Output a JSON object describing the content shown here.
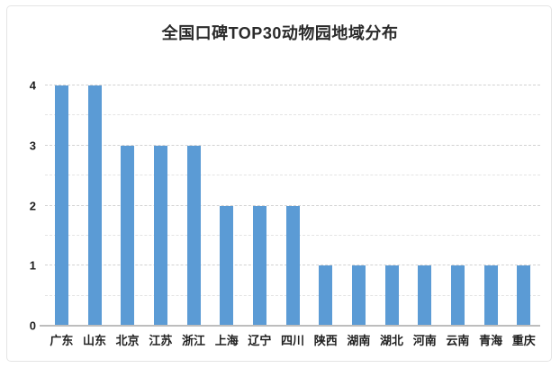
{
  "frame": {
    "background": "#ffffff",
    "border_color": "#e4e4e4"
  },
  "chart_data": {
    "type": "bar",
    "title": "全国口碑TOP30动物园地域分布",
    "categories": [
      "广东",
      "山东",
      "北京",
      "江苏",
      "浙江",
      "上海",
      "辽宁",
      "四川",
      "陕西",
      "湖南",
      "湖北",
      "河南",
      "云南",
      "青海",
      "重庆"
    ],
    "values": [
      4,
      4,
      3,
      3,
      3,
      2,
      2,
      2,
      1,
      1,
      1,
      1,
      1,
      1,
      1
    ],
    "xlabel": "",
    "ylabel": "",
    "ylim": [
      0,
      4
    ],
    "y_ticks": [
      0,
      1,
      2,
      3,
      4
    ],
    "gridline_interval": 0.5,
    "grid": true,
    "legend": false,
    "bar_color": "#5B9BD5",
    "gridline_major_color": "#d2d2d2",
    "gridline_minor_color": "#e4e4e4",
    "axis_line_color": "#bdbdbd",
    "text_color": "#1f1f1f"
  }
}
